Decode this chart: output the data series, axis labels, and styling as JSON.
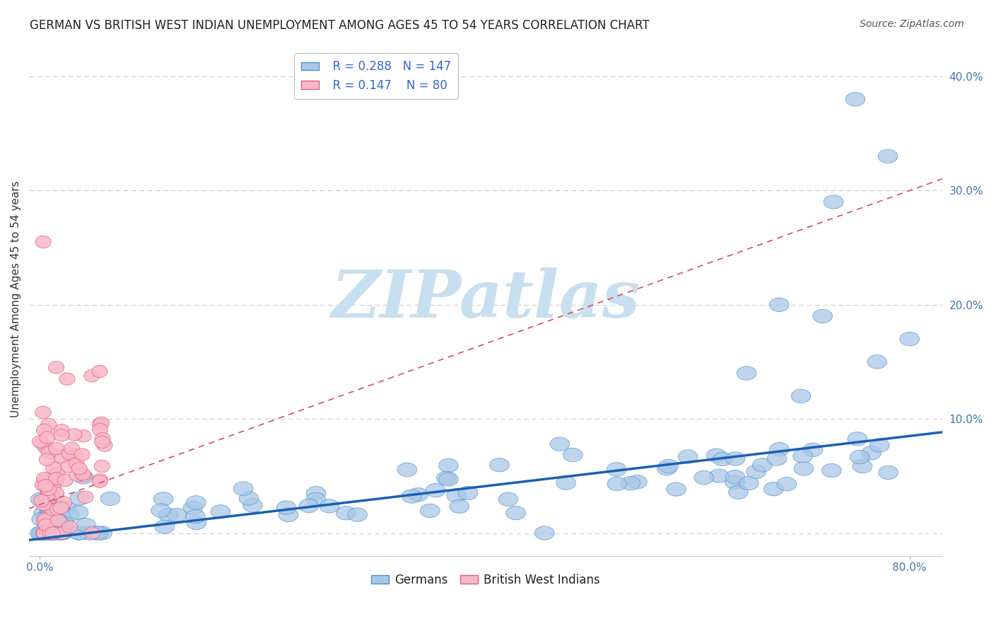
{
  "title": "GERMAN VS BRITISH WEST INDIAN UNEMPLOYMENT AMONG AGES 45 TO 54 YEARS CORRELATION CHART",
  "source": "Source: ZipAtlas.com",
  "ylabel": "Unemployment Among Ages 45 to 54 years",
  "xlim": [
    -0.01,
    0.83
  ],
  "ylim": [
    -0.02,
    0.43
  ],
  "xticks": [
    0.0,
    0.8
  ],
  "xticklabels": [
    "0.0%",
    "80.0%"
  ],
  "ytick_right_vals": [
    0.1,
    0.2,
    0.3,
    0.4
  ],
  "ytick_right_labels": [
    "10.0%",
    "20.0%",
    "30.0%",
    "40.0%"
  ],
  "ytick_grid_vals": [
    0.0,
    0.1,
    0.2,
    0.3,
    0.4
  ],
  "german_R": 0.288,
  "german_N": 147,
  "bwi_R": 0.147,
  "bwi_N": 80,
  "german_color": "#a8c8e8",
  "german_edge_color": "#5090c8",
  "bwi_color": "#f8b8c8",
  "bwi_edge_color": "#e06080",
  "german_line_color": "#1a5fb4",
  "bwi_line_color": "#d05060",
  "watermark": "ZIPatlas",
  "watermark_color": "#c8dff0",
  "background_color": "#ffffff",
  "grid_color": "#cccccc",
  "title_fontsize": 12,
  "axis_label_fontsize": 11,
  "tick_fontsize": 11,
  "legend_fontsize": 12,
  "source_fontsize": 10
}
